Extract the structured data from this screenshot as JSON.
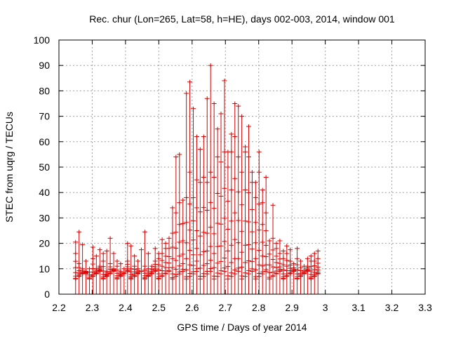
{
  "chart_data": {
    "type": "scatter",
    "title": "Rec. chur (Lon=265, Lat=58, h=HE), days 002-003, 2014, window 001",
    "xlabel": "GPS time / Days of year 2014",
    "ylabel": "STEC from uqrg / TECUs",
    "xlim": [
      2.2,
      3.3
    ],
    "ylim": [
      0,
      100
    ],
    "x_ticks": [
      "2.2",
      "2.3",
      "2.4",
      "2.5",
      "2.6",
      "2.7",
      "2.8",
      "2.9",
      "3",
      "3.1",
      "3.2",
      "3.3"
    ],
    "y_ticks": [
      "0",
      "10",
      "20",
      "30",
      "40",
      "50",
      "60",
      "70",
      "80",
      "90",
      "100"
    ],
    "grid": true,
    "series_color": "#dd0000",
    "x_start": 2.25,
    "x_step": 0.0104,
    "max_values": [
      20.5,
      24.5,
      19.5,
      13,
      10,
      18.5,
      15,
      17.5,
      16,
      17,
      22,
      16,
      13,
      12,
      10,
      20,
      19,
      15,
      13,
      17.5,
      24.5,
      16,
      11,
      18,
      16,
      21.5,
      20,
      22,
      34,
      54,
      55,
      37,
      79,
      83.5,
      73,
      62,
      57,
      62,
      77,
      90,
      75,
      65,
      71,
      84,
      56,
      63,
      75,
      74,
      70,
      58,
      66,
      48,
      44,
      56,
      41,
      46,
      21,
      35,
      20,
      21,
      17,
      19,
      17.5,
      12,
      18,
      13,
      11,
      14,
      15,
      16,
      17
    ],
    "top_values": [
      16,
      12,
      10,
      8,
      12,
      14,
      10,
      11,
      13,
      9,
      12,
      10,
      11,
      9,
      12,
      13,
      10,
      11,
      10,
      9,
      11,
      10,
      12,
      13,
      14,
      16,
      18,
      22,
      24,
      32,
      36,
      36,
      38,
      48,
      38,
      45,
      44,
      46,
      44,
      48,
      46,
      54,
      52,
      56,
      50,
      56,
      62,
      54,
      48,
      56,
      54,
      44,
      38,
      48,
      36,
      32,
      28,
      22,
      18,
      16,
      14,
      16,
      13,
      12,
      14,
      12,
      10,
      11,
      13,
      13,
      14
    ]
  }
}
